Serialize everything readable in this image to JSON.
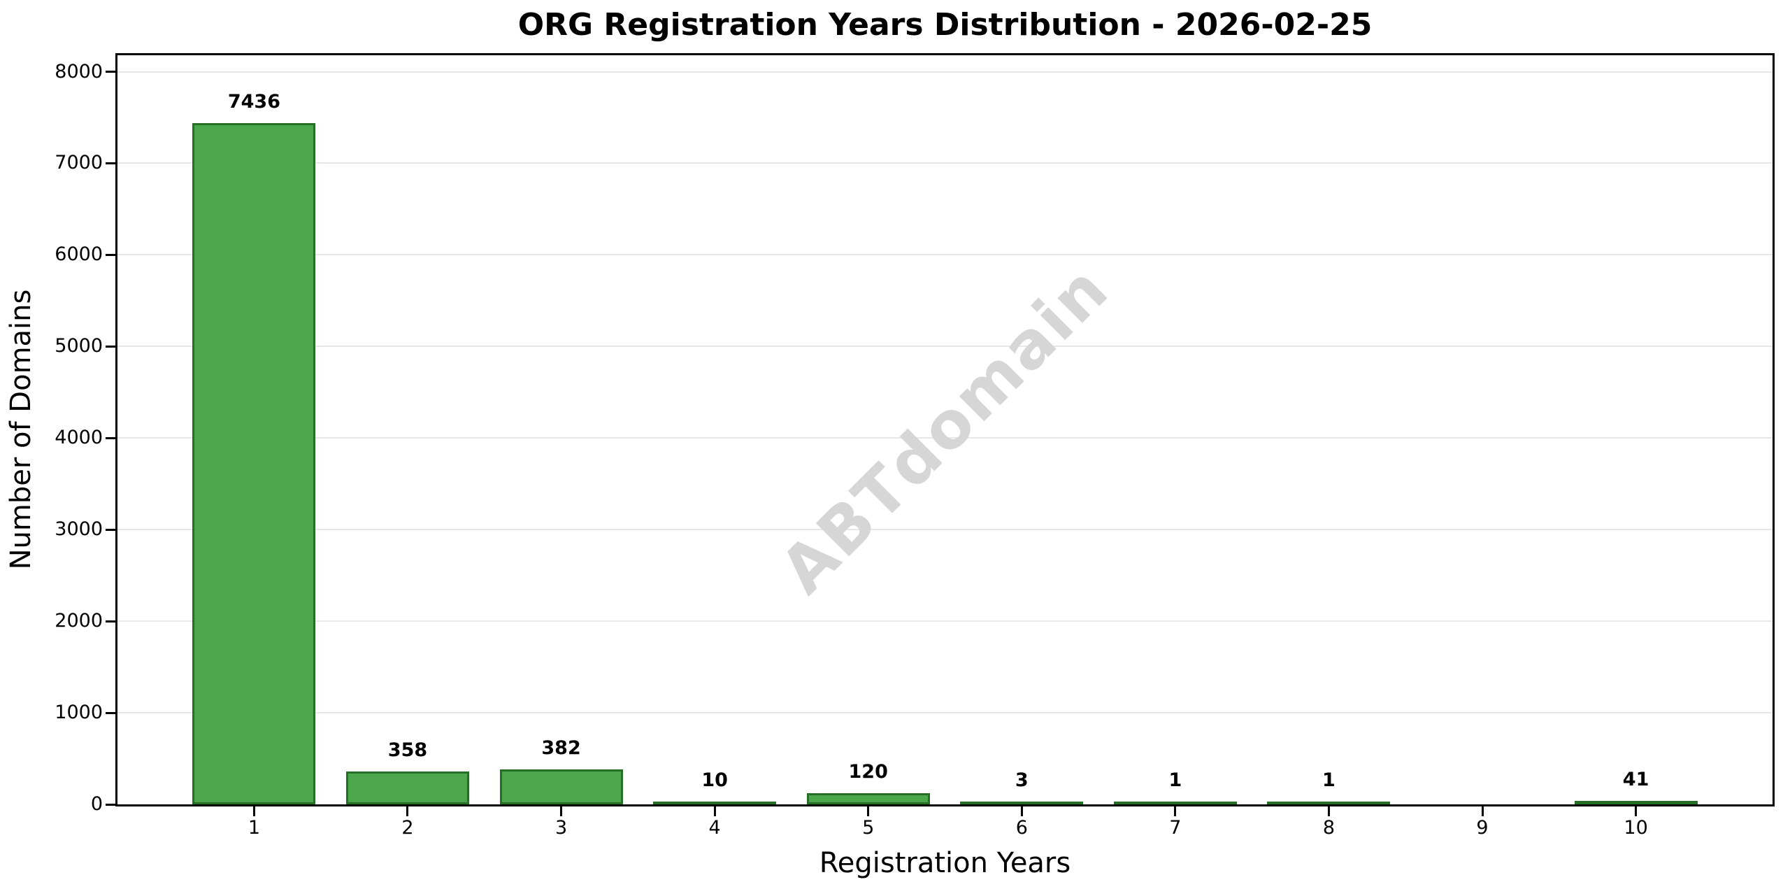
{
  "chart_data": {
    "type": "bar",
    "title": "ORG Registration Years Distribution - 2026-02-25",
    "xlabel": "Registration Years",
    "ylabel": "Number of Domains",
    "categories": [
      "1",
      "2",
      "3",
      "4",
      "5",
      "6",
      "7",
      "8",
      "9",
      "10"
    ],
    "values": [
      7436,
      358,
      382,
      10,
      120,
      3,
      1,
      1,
      0,
      41
    ],
    "bar_value_labels": [
      "7436",
      "358",
      "382",
      "10",
      "120",
      "3",
      "1",
      "1",
      "",
      "41"
    ],
    "yticks": [
      0,
      1000,
      2000,
      3000,
      4000,
      5000,
      6000,
      7000,
      8000
    ],
    "ylim": [
      0,
      8180
    ],
    "xlim": [
      0.11,
      10.89
    ],
    "bar_width_data_units": 0.8,
    "grid": "horizontal",
    "legend": "none",
    "watermark": "ABTdomain",
    "colors": {
      "bar_fill": "#4ca64c",
      "bar_edge": "#266f26",
      "grid": "#e7e7e7",
      "spine": "#000000",
      "watermark": "#d6d6d6",
      "background": "#ffffff",
      "text": "#000000"
    }
  }
}
